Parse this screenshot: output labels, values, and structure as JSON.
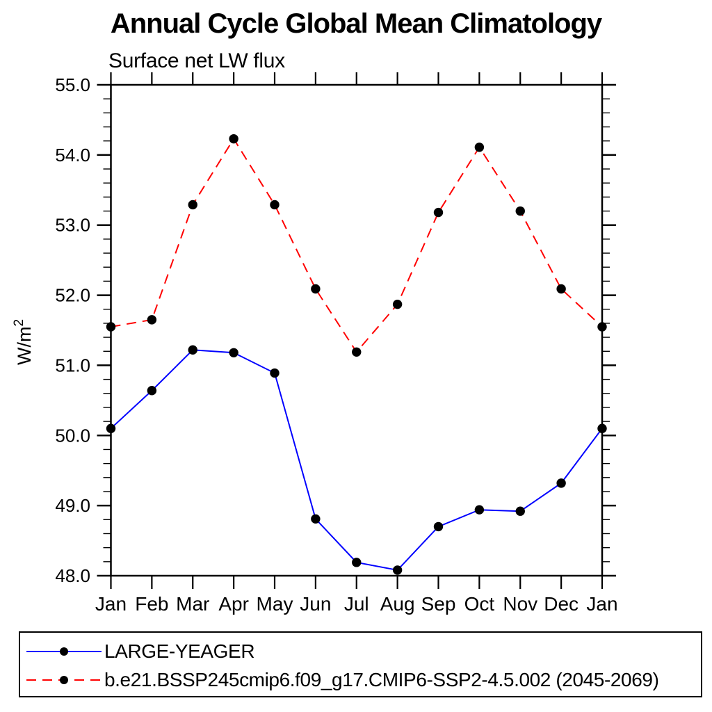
{
  "chart_data": {
    "type": "line",
    "title": "Annual Cycle Global Mean Climatology",
    "subtitle": "Surface net LW flux",
    "ylabel_base": "W/m",
    "ylabel_exp": "2",
    "categories": [
      "Jan",
      "Feb",
      "Mar",
      "Apr",
      "May",
      "Jun",
      "Jul",
      "Aug",
      "Sep",
      "Oct",
      "Nov",
      "Dec",
      "Jan"
    ],
    "series": [
      {
        "name": "LARGE-YEAGER",
        "color": "#0000ff",
        "line_style": "solid",
        "values": [
          50.1,
          50.64,
          51.22,
          51.18,
          50.89,
          48.81,
          48.19,
          48.08,
          48.7,
          48.94,
          48.92,
          49.32,
          50.1
        ]
      },
      {
        "name": "b.e21.BSSP245cmip6.f09_g17.CMIP6-SSP2-4.5.002 (2045-2069)",
        "color": "#ff0000",
        "line_style": "dashed",
        "values": [
          51.55,
          51.65,
          53.29,
          54.23,
          53.29,
          52.09,
          51.19,
          51.87,
          53.18,
          54.11,
          53.2,
          52.09,
          51.55
        ]
      }
    ],
    "marker_color": "#000000",
    "axis_color": "#000000",
    "ylim": [
      48.0,
      55.0
    ],
    "y_major_step": 1.0,
    "y_minor_step": 0.2,
    "y_tick_decimals": 1,
    "grid": false,
    "legend_position": "bottom"
  }
}
